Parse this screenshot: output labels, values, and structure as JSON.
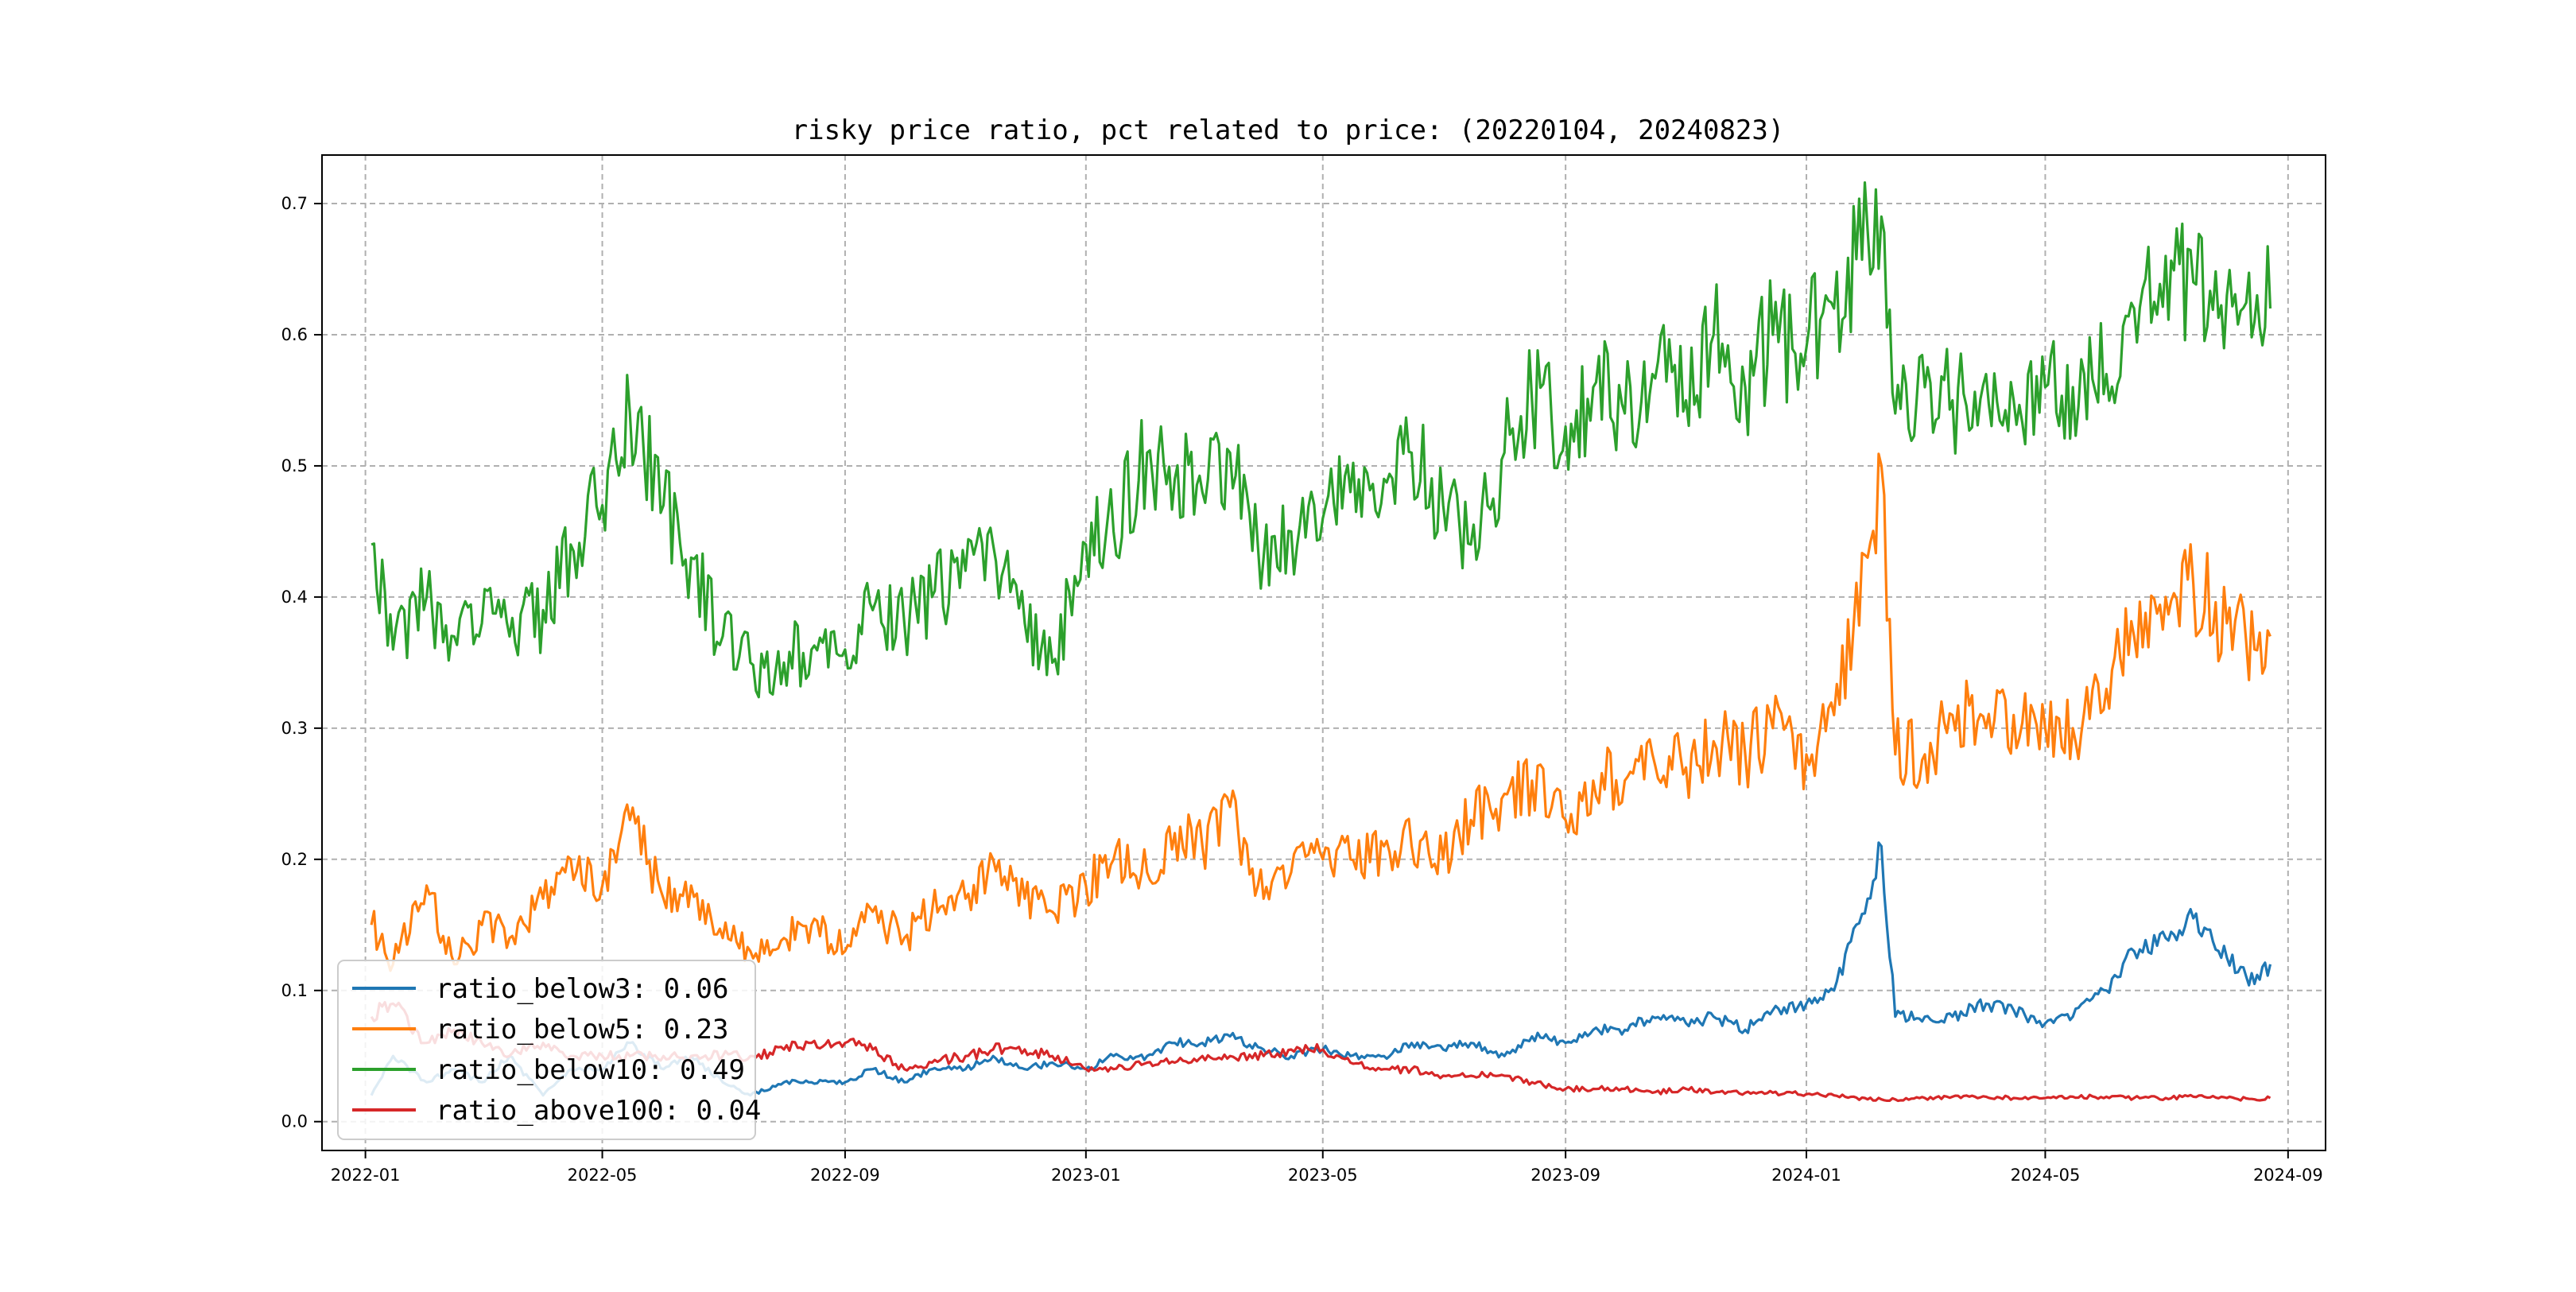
{
  "chart_data": {
    "type": "line",
    "title": "risky price ratio, pct related to price: (20220104, 20240823)",
    "xlabel": "",
    "ylabel": "",
    "x_range": [
      "2022-01-04",
      "2024-08-23"
    ],
    "xlim": [
      "2021-12-10",
      "2024-09-20"
    ],
    "ylim": [
      -0.022,
      0.737
    ],
    "x_ticks": [
      "2022-01",
      "2022-05",
      "2022-09",
      "2023-01",
      "2023-05",
      "2023-09",
      "2024-01",
      "2024-05",
      "2024-09"
    ],
    "y_ticks": [
      "0.0",
      "0.1",
      "0.2",
      "0.3",
      "0.4",
      "0.5",
      "0.6",
      "0.7"
    ],
    "grid": true,
    "legend_position": "lower-left",
    "x": [
      "2022-01-04",
      "2022-01-15",
      "2022-02-01",
      "2022-02-15",
      "2022-03-01",
      "2022-03-15",
      "2022-04-01",
      "2022-04-15",
      "2022-05-01",
      "2022-05-15",
      "2022-06-01",
      "2022-06-15",
      "2022-07-01",
      "2022-07-15",
      "2022-08-01",
      "2022-08-15",
      "2022-09-01",
      "2022-09-15",
      "2022-10-01",
      "2022-10-15",
      "2022-11-01",
      "2022-11-15",
      "2022-12-01",
      "2022-12-15",
      "2023-01-01",
      "2023-01-15",
      "2023-02-01",
      "2023-02-15",
      "2023-03-01",
      "2023-03-15",
      "2023-04-01",
      "2023-04-15",
      "2023-05-01",
      "2023-05-15",
      "2023-06-01",
      "2023-06-15",
      "2023-07-01",
      "2023-07-15",
      "2023-08-01",
      "2023-08-15",
      "2023-09-01",
      "2023-09-15",
      "2023-10-01",
      "2023-10-15",
      "2023-11-01",
      "2023-11-15",
      "2023-12-01",
      "2023-12-15",
      "2024-01-01",
      "2024-01-15",
      "2024-02-01",
      "2024-02-08",
      "2024-02-15",
      "2024-03-01",
      "2024-03-15",
      "2024-04-01",
      "2024-04-15",
      "2024-05-01",
      "2024-05-15",
      "2024-06-01",
      "2024-06-15",
      "2024-07-01",
      "2024-07-15",
      "2024-08-01",
      "2024-08-15",
      "2024-08-23"
    ],
    "series": [
      {
        "name": "ratio_below3",
        "color": "#1f77b4",
        "values": [
          0.02,
          0.05,
          0.03,
          0.04,
          0.03,
          0.05,
          0.02,
          0.04,
          0.04,
          0.06,
          0.04,
          0.05,
          0.03,
          0.02,
          0.03,
          0.03,
          0.03,
          0.04,
          0.03,
          0.04,
          0.04,
          0.05,
          0.04,
          0.045,
          0.04,
          0.05,
          0.05,
          0.06,
          0.06,
          0.065,
          0.055,
          0.05,
          0.055,
          0.05,
          0.05,
          0.06,
          0.055,
          0.06,
          0.05,
          0.065,
          0.06,
          0.07,
          0.07,
          0.08,
          0.075,
          0.08,
          0.07,
          0.085,
          0.09,
          0.1,
          0.17,
          0.21,
          0.08,
          0.08,
          0.08,
          0.09,
          0.085,
          0.075,
          0.08,
          0.1,
          0.13,
          0.14,
          0.155,
          0.125,
          0.105,
          0.12
        ]
      },
      {
        "name": "ratio_below5",
        "color": "#ff7f0e",
        "values": [
          0.15,
          0.12,
          0.18,
          0.12,
          0.15,
          0.14,
          0.17,
          0.2,
          0.18,
          0.23,
          0.17,
          0.18,
          0.14,
          0.13,
          0.14,
          0.15,
          0.13,
          0.16,
          0.14,
          0.16,
          0.17,
          0.2,
          0.17,
          0.16,
          0.18,
          0.2,
          0.19,
          0.22,
          0.21,
          0.24,
          0.17,
          0.19,
          0.2,
          0.2,
          0.21,
          0.21,
          0.2,
          0.23,
          0.25,
          0.26,
          0.23,
          0.26,
          0.26,
          0.28,
          0.27,
          0.29,
          0.28,
          0.3,
          0.28,
          0.31,
          0.43,
          0.5,
          0.28,
          0.28,
          0.31,
          0.3,
          0.31,
          0.3,
          0.3,
          0.33,
          0.37,
          0.4,
          0.41,
          0.38,
          0.36,
          0.37
        ]
      },
      {
        "name": "ratio_below10",
        "color": "#2ca02c",
        "values": [
          0.44,
          0.36,
          0.4,
          0.37,
          0.38,
          0.37,
          0.39,
          0.44,
          0.47,
          0.54,
          0.47,
          0.43,
          0.37,
          0.35,
          0.35,
          0.36,
          0.36,
          0.39,
          0.38,
          0.4,
          0.42,
          0.44,
          0.38,
          0.35,
          0.44,
          0.45,
          0.51,
          0.49,
          0.48,
          0.51,
          0.43,
          0.45,
          0.46,
          0.48,
          0.49,
          0.51,
          0.47,
          0.44,
          0.51,
          0.55,
          0.53,
          0.56,
          0.54,
          0.57,
          0.55,
          0.6,
          0.56,
          0.6,
          0.59,
          0.62,
          0.68,
          0.69,
          0.54,
          0.56,
          0.55,
          0.57,
          0.55,
          0.56,
          0.56,
          0.57,
          0.62,
          0.66,
          0.64,
          0.63,
          0.61,
          0.62
        ]
      },
      {
        "name": "ratio_above100",
        "color": "#d62728",
        "values": [
          0.08,
          0.09,
          0.06,
          0.07,
          0.06,
          0.05,
          0.06,
          0.05,
          0.05,
          0.05,
          0.05,
          0.05,
          0.05,
          0.05,
          0.055,
          0.06,
          0.06,
          0.055,
          0.04,
          0.045,
          0.05,
          0.055,
          0.055,
          0.05,
          0.04,
          0.04,
          0.045,
          0.045,
          0.05,
          0.05,
          0.05,
          0.055,
          0.055,
          0.045,
          0.04,
          0.04,
          0.035,
          0.035,
          0.035,
          0.03,
          0.025,
          0.025,
          0.025,
          0.022,
          0.025,
          0.022,
          0.022,
          0.022,
          0.021,
          0.02,
          0.017,
          0.017,
          0.017,
          0.018,
          0.019,
          0.019,
          0.018,
          0.018,
          0.019,
          0.019,
          0.018,
          0.018,
          0.019,
          0.018,
          0.017,
          0.018
        ]
      }
    ],
    "legend": [
      {
        "label": "ratio_below3: 0.06",
        "color": "#1f77b4"
      },
      {
        "label": "ratio_below5: 0.23",
        "color": "#ff7f0e"
      },
      {
        "label": "ratio_below10: 0.49",
        "color": "#2ca02c"
      },
      {
        "label": "ratio_above100: 0.04",
        "color": "#d62728"
      }
    ]
  }
}
